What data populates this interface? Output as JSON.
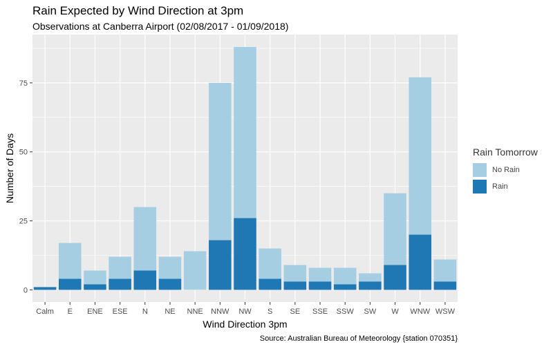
{
  "chart_data": {
    "type": "bar",
    "stacked": true,
    "title": "Rain Expected by Wind Direction at 3pm",
    "subtitle": "Observations at Canberra Airport (02/08/2017 - 01/09/2018)",
    "xlabel": "Wind Direction 3pm",
    "ylabel": "Number of Days",
    "caption": "Source: Australian Bureau of Meteorology {station 070351}",
    "categories": [
      "Calm",
      "E",
      "ENE",
      "ESE",
      "N",
      "NE",
      "NNE",
      "NNW",
      "NW",
      "S",
      "SE",
      "SSE",
      "SSW",
      "SW",
      "W",
      "WNW",
      "WSW"
    ],
    "series": [
      {
        "name": "Rain",
        "color": "#1f78b4",
        "values": [
          1,
          4,
          2,
          4,
          7,
          4,
          0,
          18,
          26,
          4,
          3,
          3,
          2,
          3,
          9,
          20,
          3
        ]
      },
      {
        "name": "No Rain",
        "color": "#a6cee3",
        "values": [
          0,
          13,
          5,
          8,
          23,
          8,
          14,
          57,
          62,
          11,
          6,
          5,
          6,
          3,
          26,
          57,
          8
        ]
      }
    ],
    "ylim": [
      -4.4,
      92.5
    ],
    "yticks": [
      0,
      25,
      50,
      75
    ],
    "grid": true,
    "legend": {
      "title": "Rain Tomorrow",
      "position": "right",
      "entries": [
        "No Rain",
        "Rain"
      ]
    },
    "colors": {
      "panel": "#ebebeb",
      "grid": "#ffffff",
      "no_rain": "#a6cee3",
      "rain": "#1f78b4"
    }
  }
}
